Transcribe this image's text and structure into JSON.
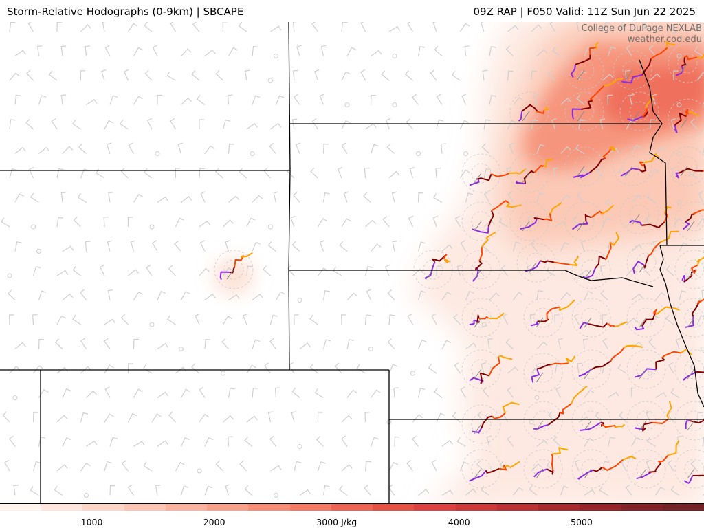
{
  "header": {
    "left_title": "Storm-Relative Hodographs (0-9km) | SBCAPE",
    "right_title": "09Z RAP | F050 Valid: 11Z Sun Jun 22 2025"
  },
  "credit": {
    "line1": "College of DuPage NEXLAB",
    "line2": "weather.cod.edu"
  },
  "colorbar": {
    "colors": [
      "#fff3ee",
      "#fee6dc",
      "#fdd6c8",
      "#fcc5b3",
      "#fbb29e",
      "#f9a08a",
      "#f78d76",
      "#f47a64",
      "#ef6553",
      "#e65146",
      "#dc4040",
      "#cd3738",
      "#bc2f33",
      "#a9282e",
      "#96222a",
      "#842028",
      "#742126"
    ],
    "tick_labels": [
      "1000",
      "2000",
      "3000 J/kg",
      "4000",
      "5000"
    ],
    "tick_values": [
      1000,
      2000,
      3000,
      4000,
      5000
    ],
    "range": [
      250,
      6000
    ]
  },
  "colors": {
    "hodo_0_1": "#8a2be2",
    "hodo_1_3": "#800000",
    "hodo_3_6": "#ff4500",
    "hodo_6_9": "#ffa500",
    "barb": "#cfcfcf",
    "border": "#000000"
  }
}
